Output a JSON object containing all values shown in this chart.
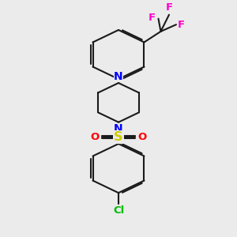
{
  "bg_color": "#ebebeb",
  "bond_color": "#1a1a1a",
  "n_color": "#0000ff",
  "s_color": "#cccc00",
  "o_color": "#ff0000",
  "cl_color": "#00bb00",
  "f_color": "#ff00cc",
  "lw": 1.5,
  "dbo": 0.055,
  "fs": 9.5,
  "xlim": [
    0,
    10
  ],
  "ylim": [
    0,
    12
  ]
}
